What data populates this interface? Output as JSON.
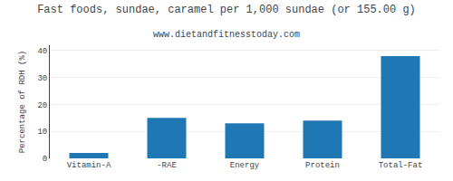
{
  "chart_data": {
    "type": "bar",
    "title": "Fast foods, sundae, caramel per 1,000 sundae (or 155.00 g)",
    "subtitle": "www.dietandfitnesstoday.com",
    "categories": [
      "Vitamin-A",
      "-RAE",
      "Energy",
      "Protein",
      "Total-Fat"
    ],
    "values": [
      2.0,
      15.0,
      13.0,
      14.0,
      38.0
    ],
    "ylabel": "Percentage of RDH (%)",
    "ylim": [
      0,
      42
    ],
    "yticks": [
      0,
      10,
      20,
      30,
      40
    ],
    "grid": true
  }
}
